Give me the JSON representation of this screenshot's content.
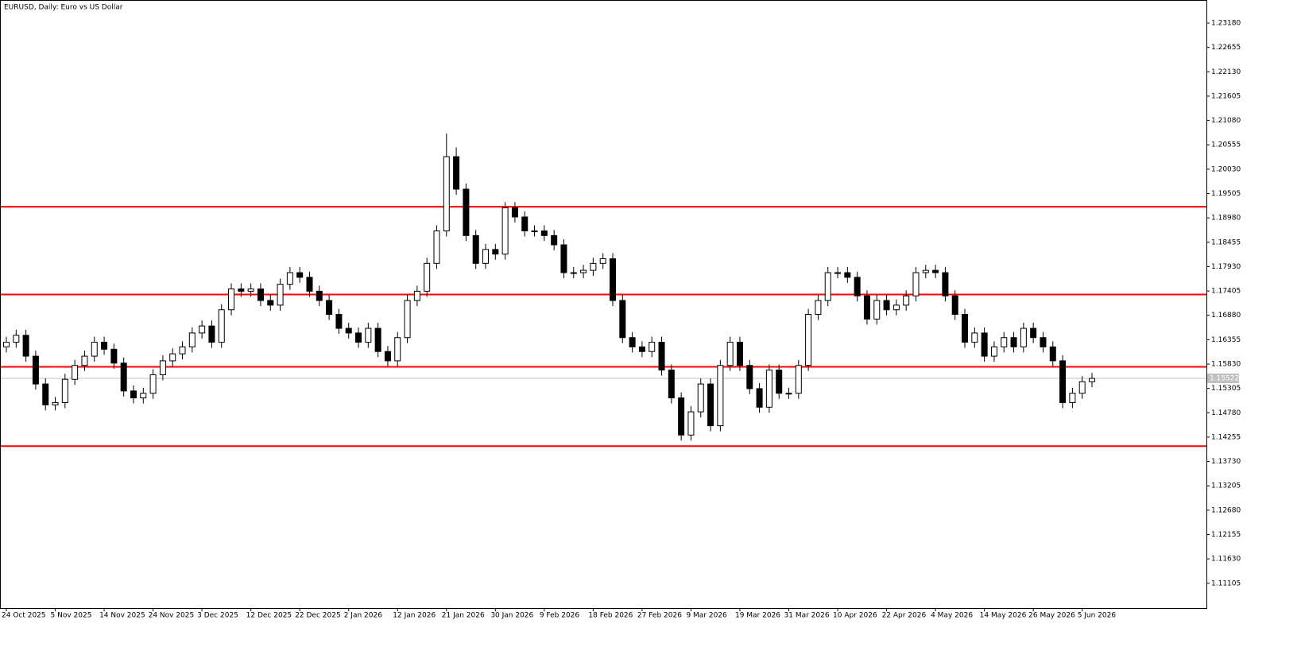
{
  "chart_data": {
    "type": "candlestick",
    "title": "EURUSD, Daily:  Euro vs US Dollar",
    "categories": [
      "24 Oct 2025",
      null,
      null,
      null,
      null,
      "5 Nov 2025",
      null,
      null,
      null,
      null,
      "14 Nov 2025",
      null,
      null,
      null,
      null,
      "24 Nov 2025",
      null,
      null,
      null,
      null,
      "3 Dec 2025",
      null,
      null,
      null,
      null,
      "12 Dec 2025",
      null,
      null,
      null,
      null,
      "22 Dec 2025",
      null,
      null,
      null,
      null,
      "2 Jan 2026",
      null,
      null,
      null,
      null,
      "12 Jan 2026",
      null,
      null,
      null,
      null,
      "21 Jan 2026",
      null,
      null,
      null,
      null,
      "30 Jan 2026",
      null,
      null,
      null,
      null,
      "9 Feb 2026",
      null,
      null,
      null,
      null,
      "18 Feb 2026",
      null,
      null,
      null,
      null,
      "27 Feb 2026",
      null,
      null,
      null,
      null,
      "9 Mar 2026",
      null,
      null,
      null,
      null,
      "19 Mar 2026",
      null,
      null,
      null,
      null,
      "31 Mar 2026",
      null,
      null,
      null,
      null,
      "10 Apr 2026",
      null,
      null,
      null,
      null,
      "22 Apr 2026",
      null,
      null,
      null,
      null,
      "4 May 2026",
      null,
      null,
      null,
      null,
      "14 May 2026",
      null,
      null,
      null,
      null,
      "26 May 2026",
      null,
      null,
      null,
      null,
      "5 Jun 2026",
      null
    ],
    "open": [
      1.162,
      1.163,
      1.1645,
      1.16,
      1.154,
      1.1495,
      1.15,
      1.155,
      1.158,
      1.16,
      1.163,
      1.1615,
      1.1585,
      1.1525,
      1.151,
      1.152,
      1.156,
      1.159,
      1.1605,
      1.162,
      1.165,
      1.1665,
      1.163,
      1.17,
      1.1745,
      1.174,
      1.1745,
      1.172,
      1.171,
      1.1755,
      1.178,
      1.177,
      1.174,
      1.172,
      1.169,
      1.166,
      1.165,
      1.163,
      1.166,
      1.161,
      1.159,
      1.164,
      1.172,
      1.174,
      1.18,
      1.187,
      1.203,
      1.196,
      1.186,
      1.18,
      1.183,
      1.182,
      1.192,
      1.19,
      1.187,
      1.187,
      1.186,
      1.184,
      1.178,
      1.178,
      1.1785,
      1.18,
      1.181,
      1.172,
      1.164,
      1.162,
      1.161,
      1.163,
      1.157,
      1.151,
      1.143,
      1.148,
      1.154,
      1.145,
      1.158,
      1.163,
      1.158,
      1.153,
      1.149,
      1.157,
      1.152,
      1.152,
      1.158,
      1.169,
      1.172,
      1.178,
      1.178,
      1.177,
      1.173,
      1.168,
      1.172,
      1.17,
      1.171,
      1.173,
      1.178,
      1.1785,
      1.178,
      1.173,
      1.169,
      1.163,
      1.165,
      1.16,
      1.162,
      1.164,
      1.162,
      1.166,
      1.164,
      1.162,
      1.159,
      1.15,
      1.152,
      1.1545
    ],
    "high": [
      1.1642,
      1.1657,
      1.1657,
      1.1612,
      1.1552,
      1.1512,
      1.1562,
      1.1592,
      1.1612,
      1.1642,
      1.1642,
      1.1627,
      1.1597,
      1.1537,
      1.1532,
      1.1572,
      1.1602,
      1.1617,
      1.1632,
      1.1662,
      1.1677,
      1.1677,
      1.1712,
      1.1757,
      1.1757,
      1.1757,
      1.1757,
      1.1732,
      1.1767,
      1.1792,
      1.1792,
      1.1782,
      1.1752,
      1.1732,
      1.1702,
      1.1672,
      1.1662,
      1.1672,
      1.1672,
      1.1622,
      1.1652,
      1.1732,
      1.1752,
      1.1812,
      1.1882,
      1.208,
      1.205,
      1.1972,
      1.1872,
      1.1842,
      1.1842,
      1.1932,
      1.1932,
      1.1912,
      1.1882,
      1.1882,
      1.1872,
      1.1852,
      1.1792,
      1.1797,
      1.1812,
      1.1822,
      1.1822,
      1.1732,
      1.1652,
      1.1632,
      1.1642,
      1.1642,
      1.1582,
      1.1522,
      1.1492,
      1.1552,
      1.1552,
      1.1592,
      1.1642,
      1.1642,
      1.1592,
      1.1542,
      1.1582,
      1.1582,
      1.1532,
      1.1592,
      1.1702,
      1.1732,
      1.1792,
      1.1792,
      1.1792,
      1.1782,
      1.1742,
      1.1732,
      1.1732,
      1.1722,
      1.1742,
      1.1792,
      1.1797,
      1.1797,
      1.1792,
      1.1742,
      1.1702,
      1.1662,
      1.1662,
      1.1632,
      1.1652,
      1.1652,
      1.1672,
      1.1672,
      1.1652,
      1.1632,
      1.1602,
      1.1532,
      1.1557,
      1.1564
    ],
    "low": [
      1.1608,
      1.1618,
      1.1588,
      1.1528,
      1.1483,
      1.1483,
      1.1488,
      1.1538,
      1.1568,
      1.1588,
      1.1603,
      1.1573,
      1.1513,
      1.1498,
      1.1498,
      1.1508,
      1.1548,
      1.1578,
      1.1593,
      1.1608,
      1.1638,
      1.1618,
      1.1618,
      1.1688,
      1.1728,
      1.1728,
      1.1708,
      1.1698,
      1.1698,
      1.1743,
      1.1758,
      1.1728,
      1.1708,
      1.1678,
      1.1648,
      1.1638,
      1.1618,
      1.1618,
      1.1598,
      1.1578,
      1.1578,
      1.1628,
      1.1708,
      1.1728,
      1.1788,
      1.1858,
      1.1948,
      1.1848,
      1.1788,
      1.1788,
      1.1808,
      1.1808,
      1.1888,
      1.1858,
      1.1858,
      1.1848,
      1.1828,
      1.1768,
      1.1768,
      1.1768,
      1.1773,
      1.1788,
      1.1708,
      1.1628,
      1.1608,
      1.1598,
      1.1598,
      1.1558,
      1.1498,
      1.1418,
      1.1418,
      1.1468,
      1.1438,
      1.1438,
      1.1568,
      1.1568,
      1.1518,
      1.1478,
      1.1478,
      1.1508,
      1.1508,
      1.1508,
      1.1568,
      1.1678,
      1.1708,
      1.1768,
      1.1758,
      1.1718,
      1.1668,
      1.1668,
      1.1688,
      1.1688,
      1.1698,
      1.1718,
      1.1768,
      1.1768,
      1.1718,
      1.1678,
      1.1618,
      1.1618,
      1.1588,
      1.1588,
      1.1608,
      1.1608,
      1.1608,
      1.1628,
      1.1608,
      1.1578,
      1.1488,
      1.1488,
      1.1508,
      1.1533
    ],
    "close": [
      1.163,
      1.1645,
      1.16,
      1.154,
      1.1495,
      1.15,
      1.155,
      1.158,
      1.16,
      1.163,
      1.1615,
      1.1585,
      1.1525,
      1.151,
      1.152,
      1.156,
      1.159,
      1.1605,
      1.162,
      1.165,
      1.1665,
      1.163,
      1.17,
      1.1745,
      1.174,
      1.1745,
      1.172,
      1.171,
      1.1755,
      1.178,
      1.177,
      1.174,
      1.172,
      1.169,
      1.166,
      1.165,
      1.163,
      1.166,
      1.161,
      1.159,
      1.164,
      1.172,
      1.174,
      1.18,
      1.187,
      1.203,
      1.196,
      1.186,
      1.18,
      1.183,
      1.182,
      1.192,
      1.19,
      1.187,
      1.187,
      1.186,
      1.184,
      1.178,
      1.178,
      1.1785,
      1.18,
      1.181,
      1.172,
      1.164,
      1.162,
      1.161,
      1.163,
      1.157,
      1.151,
      1.143,
      1.148,
      1.154,
      1.145,
      1.158,
      1.163,
      1.158,
      1.153,
      1.149,
      1.157,
      1.152,
      1.152,
      1.158,
      1.169,
      1.172,
      1.178,
      1.178,
      1.177,
      1.173,
      1.168,
      1.172,
      1.17,
      1.171,
      1.173,
      1.178,
      1.1785,
      1.178,
      1.173,
      1.169,
      1.163,
      1.165,
      1.16,
      1.162,
      1.164,
      1.162,
      1.166,
      1.164,
      1.162,
      1.159,
      1.15,
      1.152,
      1.1545,
      1.1552
    ],
    "ylim": [
      1.1057,
      1.2366
    ],
    "yticks": [
      {
        "value": 1.2318,
        "label": "1.23180"
      },
      {
        "value": 1.22655,
        "label": "1.22655"
      },
      {
        "value": 1.2213,
        "label": "1.22130"
      },
      {
        "value": 1.21605,
        "label": "1.21605"
      },
      {
        "value": 1.2108,
        "label": "1.21080"
      },
      {
        "value": 1.20555,
        "label": "1.20555"
      },
      {
        "value": 1.2003,
        "label": "1.20030"
      },
      {
        "value": 1.19505,
        "label": "1.19505"
      },
      {
        "value": 1.1898,
        "label": "1.18980"
      },
      {
        "value": 1.18455,
        "label": "1.18455"
      },
      {
        "value": 1.1793,
        "label": "1.17930"
      },
      {
        "value": 1.17405,
        "label": "1.17405"
      },
      {
        "value": 1.1688,
        "label": "1.16880"
      },
      {
        "value": 1.16355,
        "label": "1.16355"
      },
      {
        "value": 1.1583,
        "label": "1.15830"
      },
      {
        "value": 1.15305,
        "label": "1.15305"
      },
      {
        "value": 1.1478,
        "label": "1.14780"
      },
      {
        "value": 1.14255,
        "label": "1.14255"
      },
      {
        "value": 1.1373,
        "label": "1.13730"
      },
      {
        "value": 1.13205,
        "label": "1.13205"
      },
      {
        "value": 1.1268,
        "label": "1.12680"
      },
      {
        "value": 1.12155,
        "label": "1.12155"
      },
      {
        "value": 1.1163,
        "label": "1.11630"
      },
      {
        "value": 1.11105,
        "label": "1.11105"
      }
    ],
    "levels": [
      1.1922,
      1.1733,
      1.1577,
      1.1406
    ],
    "level_color": "#ff0000",
    "last_price": 1.15522,
    "up_color": "#ffffff",
    "down_color": "#000000"
  }
}
